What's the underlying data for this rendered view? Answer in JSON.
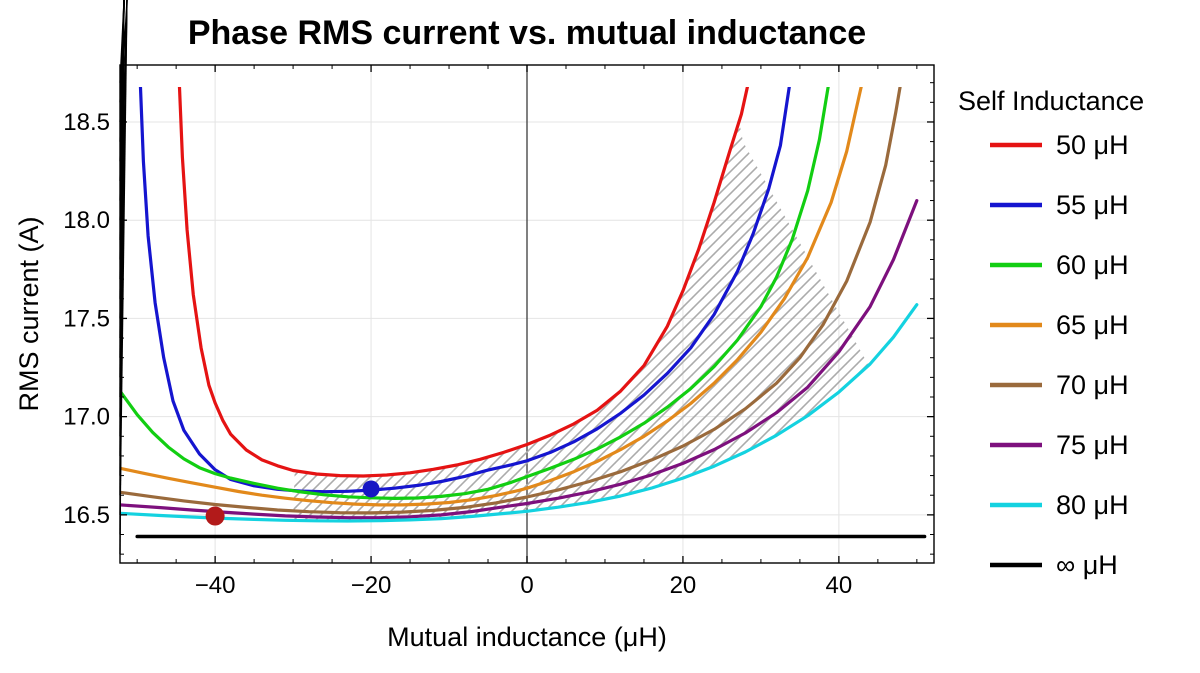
{
  "chart_data": {
    "type": "line",
    "title": "Phase RMS current vs. mutual inductance",
    "xlabel": "Mutual inductance (μH)",
    "ylabel": "RMS current (A)",
    "xlim": [
      -52.2,
      52.2
    ],
    "ylim": [
      16.255,
      18.79
    ],
    "clip_top_value": 18.68,
    "grid": true,
    "x_ticks": [
      -40,
      -20,
      0,
      20,
      40
    ],
    "y_ticks": [
      16.5,
      17.0,
      17.5,
      18.0,
      18.5
    ],
    "x_minor_step": 5,
    "y_minor_step": 0.1,
    "zero_axis_x": 0,
    "colors": {
      "grid": "#e4e4e4",
      "zero_axis": "#3c3c3c",
      "frame": "#000000",
      "hatch": "#ababab"
    },
    "legend_title": "Self Inductance",
    "series": [
      {
        "label": "50 μH",
        "color": "#e51313",
        "width": 3.2,
        "points": [
          [
            -44.6,
            18.7
          ],
          [
            -44.2,
            18.32
          ],
          [
            -43.6,
            17.95
          ],
          [
            -42.8,
            17.62
          ],
          [
            -41.8,
            17.35
          ],
          [
            -40.8,
            17.16
          ],
          [
            -40,
            17.07
          ],
          [
            -39,
            16.98
          ],
          [
            -38,
            16.91
          ],
          [
            -36,
            16.83
          ],
          [
            -34,
            16.78
          ],
          [
            -32,
            16.75
          ],
          [
            -30,
            16.726
          ],
          [
            -27,
            16.708
          ],
          [
            -24,
            16.7
          ],
          [
            -21,
            16.698
          ],
          [
            -18,
            16.703
          ],
          [
            -15,
            16.714
          ],
          [
            -12,
            16.732
          ],
          [
            -9,
            16.754
          ],
          [
            -6,
            16.783
          ],
          [
            -3,
            16.818
          ],
          [
            0,
            16.858
          ],
          [
            3,
            16.906
          ],
          [
            6,
            16.963
          ],
          [
            9,
            17.033
          ],
          [
            12,
            17.13
          ],
          [
            15,
            17.26
          ],
          [
            18,
            17.46
          ],
          [
            20,
            17.64
          ],
          [
            22,
            17.85
          ],
          [
            24,
            18.09
          ],
          [
            26,
            18.35
          ],
          [
            27.5,
            18.54
          ],
          [
            28.5,
            18.72
          ]
        ]
      },
      {
        "label": "55 μH",
        "color": "#1515cf",
        "width": 3.2,
        "points": [
          [
            -49.6,
            18.7
          ],
          [
            -49.2,
            18.3
          ],
          [
            -48.6,
            17.92
          ],
          [
            -47.7,
            17.58
          ],
          [
            -46.6,
            17.3
          ],
          [
            -45.4,
            17.08
          ],
          [
            -44,
            16.93
          ],
          [
            -42,
            16.81
          ],
          [
            -40,
            16.73
          ],
          [
            -38,
            16.68
          ],
          [
            -35,
            16.648
          ],
          [
            -32,
            16.63
          ],
          [
            -29,
            16.621
          ],
          [
            -26,
            16.618
          ],
          [
            -23,
            16.62
          ],
          [
            -20,
            16.626
          ],
          [
            -17,
            16.636
          ],
          [
            -14,
            16.65
          ],
          [
            -11,
            16.67
          ],
          [
            -8,
            16.696
          ],
          [
            -5,
            16.728
          ],
          [
            -2,
            16.755
          ],
          [
            0,
            16.775
          ],
          [
            3,
            16.818
          ],
          [
            6,
            16.872
          ],
          [
            9,
            16.938
          ],
          [
            12,
            17.017
          ],
          [
            15,
            17.11
          ],
          [
            18,
            17.22
          ],
          [
            21,
            17.35
          ],
          [
            24,
            17.52
          ],
          [
            27,
            17.74
          ],
          [
            29,
            17.93
          ],
          [
            31,
            18.16
          ],
          [
            32.5,
            18.38
          ],
          [
            33.8,
            18.72
          ]
        ]
      },
      {
        "label": "60 μH",
        "color": "#12ce12",
        "width": 3.2,
        "points": [
          [
            -52.2,
            17.13
          ],
          [
            -50,
            17.01
          ],
          [
            -48,
            16.92
          ],
          [
            -46,
            16.845
          ],
          [
            -44,
            16.785
          ],
          [
            -42,
            16.74
          ],
          [
            -40,
            16.71
          ],
          [
            -38,
            16.687
          ],
          [
            -35,
            16.66
          ],
          [
            -32,
            16.636
          ],
          [
            -29,
            16.617
          ],
          [
            -26,
            16.602
          ],
          [
            -23,
            16.592
          ],
          [
            -20,
            16.587
          ],
          [
            -17,
            16.584
          ],
          [
            -14,
            16.586
          ],
          [
            -11,
            16.594
          ],
          [
            -8,
            16.608
          ],
          [
            -5,
            16.63
          ],
          [
            -2,
            16.666
          ],
          [
            0,
            16.695
          ],
          [
            3,
            16.737
          ],
          [
            6,
            16.783
          ],
          [
            9,
            16.836
          ],
          [
            12,
            16.897
          ],
          [
            15,
            16.966
          ],
          [
            18,
            17.048
          ],
          [
            21,
            17.143
          ],
          [
            24,
            17.255
          ],
          [
            27,
            17.39
          ],
          [
            30,
            17.56
          ],
          [
            32,
            17.71
          ],
          [
            34,
            17.9
          ],
          [
            36,
            18.15
          ],
          [
            37.5,
            18.41
          ],
          [
            38.8,
            18.72
          ]
        ]
      },
      {
        "label": "65 μH",
        "color": "#e2891b",
        "width": 3.2,
        "points": [
          [
            -52.2,
            16.737
          ],
          [
            -49,
            16.71
          ],
          [
            -46,
            16.686
          ],
          [
            -43,
            16.663
          ],
          [
            -40,
            16.641
          ],
          [
            -37,
            16.619
          ],
          [
            -34,
            16.6
          ],
          [
            -31,
            16.585
          ],
          [
            -28,
            16.572
          ],
          [
            -25,
            16.562
          ],
          [
            -22,
            16.555
          ],
          [
            -19,
            16.551
          ],
          [
            -16,
            16.551
          ],
          [
            -13,
            16.555
          ],
          [
            -10,
            16.563
          ],
          [
            -7,
            16.577
          ],
          [
            -4,
            16.598
          ],
          [
            -1,
            16.625
          ],
          [
            0,
            16.636
          ],
          [
            3,
            16.675
          ],
          [
            6,
            16.72
          ],
          [
            9,
            16.772
          ],
          [
            12,
            16.832
          ],
          [
            15,
            16.9
          ],
          [
            18,
            16.978
          ],
          [
            21,
            17.067
          ],
          [
            24,
            17.17
          ],
          [
            27,
            17.29
          ],
          [
            30,
            17.43
          ],
          [
            33,
            17.6
          ],
          [
            36,
            17.81
          ],
          [
            39,
            18.09
          ],
          [
            41,
            18.35
          ],
          [
            42.3,
            18.58
          ],
          [
            43.1,
            18.72
          ]
        ]
      },
      {
        "label": "70 μH",
        "color": "#9a6a3c",
        "width": 3.2,
        "points": [
          [
            -52.2,
            16.615
          ],
          [
            -48,
            16.592
          ],
          [
            -44,
            16.571
          ],
          [
            -40,
            16.553
          ],
          [
            -36,
            16.538
          ],
          [
            -32,
            16.525
          ],
          [
            -28,
            16.516
          ],
          [
            -24,
            16.511
          ],
          [
            -20,
            16.51
          ],
          [
            -16,
            16.514
          ],
          [
            -12,
            16.523
          ],
          [
            -8,
            16.538
          ],
          [
            -4,
            16.561
          ],
          [
            0,
            16.591
          ],
          [
            4,
            16.627
          ],
          [
            8,
            16.67
          ],
          [
            12,
            16.72
          ],
          [
            16,
            16.78
          ],
          [
            20,
            16.85
          ],
          [
            24,
            16.935
          ],
          [
            28,
            17.04
          ],
          [
            32,
            17.17
          ],
          [
            35,
            17.3
          ],
          [
            38,
            17.47
          ],
          [
            41,
            17.69
          ],
          [
            44,
            17.99
          ],
          [
            46,
            18.28
          ],
          [
            47.3,
            18.55
          ],
          [
            48.2,
            18.76
          ]
        ]
      },
      {
        "label": "75 μH",
        "color": "#7d107d",
        "width": 3.2,
        "points": [
          [
            -52.2,
            16.551
          ],
          [
            -47,
            16.537
          ],
          [
            -43,
            16.525
          ],
          [
            -39,
            16.514
          ],
          [
            -35,
            16.504
          ],
          [
            -31,
            16.495
          ],
          [
            -27,
            16.489
          ],
          [
            -23,
            16.4855
          ],
          [
            -19,
            16.4855
          ],
          [
            -15,
            16.49
          ],
          [
            -11,
            16.5
          ],
          [
            -7,
            16.517
          ],
          [
            -3,
            16.541
          ],
          [
            0,
            16.558
          ],
          [
            4,
            16.585
          ],
          [
            8,
            16.617
          ],
          [
            12,
            16.656
          ],
          [
            16,
            16.704
          ],
          [
            20,
            16.762
          ],
          [
            24,
            16.832
          ],
          [
            28,
            16.917
          ],
          [
            32,
            17.02
          ],
          [
            36,
            17.15
          ],
          [
            40,
            17.33
          ],
          [
            44,
            17.56
          ],
          [
            47,
            17.8
          ],
          [
            50,
            18.1
          ]
        ]
      },
      {
        "label": "80 μH",
        "color": "#14d2e0",
        "width": 3.2,
        "points": [
          [
            -52.2,
            16.508
          ],
          [
            -47,
            16.497
          ],
          [
            -43,
            16.489
          ],
          [
            -39,
            16.482
          ],
          [
            -35,
            16.477
          ],
          [
            -31,
            16.4725
          ],
          [
            -27,
            16.47
          ],
          [
            -23,
            16.469
          ],
          [
            -19,
            16.4705
          ],
          [
            -15,
            16.4745
          ],
          [
            -11,
            16.481
          ],
          [
            -7,
            16.492
          ],
          [
            -3,
            16.507
          ],
          [
            0,
            16.518
          ],
          [
            4,
            16.539
          ],
          [
            8,
            16.564
          ],
          [
            12,
            16.596
          ],
          [
            16,
            16.637
          ],
          [
            20,
            16.687
          ],
          [
            24,
            16.748
          ],
          [
            28,
            16.82
          ],
          [
            32,
            16.905
          ],
          [
            36,
            17.005
          ],
          [
            40,
            17.125
          ],
          [
            44,
            17.268
          ],
          [
            47,
            17.405
          ],
          [
            50,
            17.57
          ]
        ]
      },
      {
        "label": "∞ μH",
        "color": "#000000",
        "width": 3.5,
        "points": [
          [
            -50,
            16.39
          ],
          [
            51,
            16.39
          ]
        ]
      }
    ],
    "markers": [
      {
        "x": -40,
        "y": 16.494,
        "color": "#b21a1a",
        "r": 9.5
      },
      {
        "x": -20,
        "y": 16.632,
        "color": "#1717c4",
        "r": 8.5
      }
    ],
    "hatch_region": {
      "upper_series_index": 0,
      "lower_series_index": 6,
      "x_start": -30,
      "x_end": 43.7,
      "diag_start": [
        27.4,
        18.42
      ],
      "diag_end": [
        43.7,
        17.27
      ]
    }
  }
}
